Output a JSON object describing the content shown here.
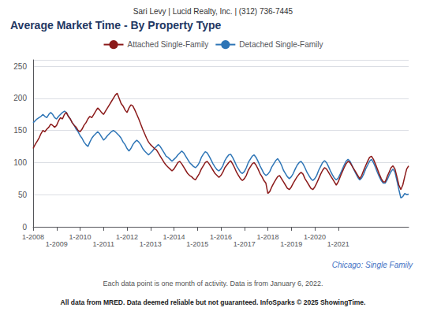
{
  "chart_data": {
    "type": "line",
    "title": "Average Market Time - By Property Type",
    "annotations": [
      "Sari Levy | Lucid Realty, Inc. | (312) 736-7445",
      "Chicago: Single Family",
      "Each data point is one month of activity. Data is from January 6, 2022.",
      "All data from MRED. Data deemed reliable but not guaranteed. InfoSparks © 2025 ShowingTime."
    ],
    "categories": [
      "1-2008",
      null,
      null,
      null,
      null,
      null,
      null,
      null,
      null,
      null,
      null,
      null,
      "1-2009",
      null,
      null,
      null,
      null,
      null,
      null,
      null,
      null,
      null,
      null,
      null,
      "1-2010",
      null,
      null,
      null,
      null,
      null,
      null,
      null,
      null,
      null,
      null,
      null,
      "1-2011",
      null,
      null,
      null,
      null,
      null,
      null,
      null,
      null,
      null,
      null,
      null,
      "1-2012",
      null,
      null,
      null,
      null,
      null,
      null,
      null,
      null,
      null,
      null,
      null,
      "1-2013",
      null,
      null,
      null,
      null,
      null,
      null,
      null,
      null,
      null,
      null,
      null,
      "1-2014",
      null,
      null,
      null,
      null,
      null,
      null,
      null,
      null,
      null,
      null,
      null,
      "1-2015",
      null,
      null,
      null,
      null,
      null,
      null,
      null,
      null,
      null,
      null,
      null,
      "1-2016",
      null,
      null,
      null,
      null,
      null,
      null,
      null,
      null,
      null,
      null,
      null,
      "1-2017",
      null,
      null,
      null,
      null,
      null,
      null,
      null,
      null,
      null,
      null,
      null,
      "1-2018",
      null,
      null,
      null,
      null,
      null,
      null,
      null,
      null,
      null,
      null,
      null,
      "1-2019",
      null,
      null,
      null,
      null,
      null,
      null,
      null,
      null,
      null,
      null,
      null,
      "1-2020",
      null,
      null,
      null,
      null,
      null,
      null,
      null,
      null,
      null,
      null,
      null,
      "1-2021",
      null,
      null,
      null,
      null,
      null,
      null,
      null,
      null,
      null,
      null,
      null,
      null,
      null,
      null,
      null,
      null,
      null,
      null,
      null,
      null,
      null,
      null,
      null,
      null,
      null,
      null,
      null,
      null,
      null,
      null,
      null,
      null,
      null,
      null,
      null,
      null
    ],
    "series": [
      {
        "name": "Attached Single-Family",
        "color": "#8B1A1A",
        "values": [
          122,
          128,
          133,
          138,
          145,
          150,
          148,
          152,
          155,
          160,
          158,
          155,
          158,
          165,
          170,
          168,
          175,
          178,
          172,
          168,
          162,
          158,
          155,
          150,
          148,
          152,
          158,
          162,
          168,
          172,
          170,
          175,
          180,
          185,
          182,
          178,
          175,
          180,
          185,
          190,
          195,
          200,
          205,
          208,
          200,
          192,
          188,
          182,
          178,
          185,
          190,
          188,
          182,
          175,
          168,
          160,
          152,
          145,
          138,
          132,
          128,
          125,
          122,
          120,
          115,
          110,
          105,
          100,
          96,
          93,
          90,
          87,
          90,
          95,
          100,
          102,
          98,
          93,
          88,
          83,
          80,
          78,
          75,
          73,
          78,
          83,
          90,
          95,
          100,
          102,
          98,
          93,
          88,
          83,
          80,
          77,
          80,
          85,
          92,
          96,
          100,
          103,
          98,
          92,
          85,
          80,
          75,
          72,
          75,
          80,
          88,
          93,
          98,
          100,
          96,
          90,
          83,
          78,
          72,
          68,
          52,
          55,
          62,
          68,
          73,
          78,
          80,
          75,
          70,
          65,
          60,
          58,
          62,
          68,
          73,
          78,
          82,
          85,
          82,
          75,
          70,
          65,
          60,
          58,
          62,
          68,
          75,
          82,
          88,
          92,
          90,
          85,
          80,
          75,
          70,
          65,
          70,
          78,
          85,
          92,
          98,
          102,
          100,
          95,
          90,
          85,
          80,
          75,
          80,
          88,
          95,
          102,
          108,
          110,
          105,
          98,
          90,
          82,
          75,
          70,
          70,
          78,
          85,
          92,
          95,
          90,
          78,
          65,
          58,
          65,
          78,
          90,
          95
        ]
      },
      {
        "name": "Detached Single-Family",
        "color": "#2E75B6",
        "values": [
          162,
          165,
          168,
          170,
          172,
          175,
          172,
          170,
          175,
          178,
          175,
          170,
          168,
          172,
          175,
          178,
          180,
          178,
          172,
          168,
          162,
          158,
          152,
          148,
          142,
          138,
          132,
          128,
          125,
          132,
          138,
          142,
          145,
          148,
          145,
          140,
          135,
          138,
          142,
          145,
          148,
          150,
          148,
          145,
          142,
          138,
          132,
          128,
          122,
          118,
          122,
          128,
          132,
          135,
          132,
          128,
          122,
          118,
          115,
          112,
          115,
          118,
          122,
          125,
          128,
          125,
          120,
          115,
          110,
          108,
          105,
          102,
          105,
          108,
          112,
          115,
          118,
          115,
          110,
          105,
          100,
          97,
          94,
          92,
          95,
          100,
          108,
          113,
          117,
          115,
          110,
          104,
          98,
          93,
          89,
          87,
          90,
          95,
          103,
          108,
          112,
          113,
          108,
          102,
          95,
          90,
          85,
          83,
          86,
          92,
          100,
          105,
          110,
          112,
          108,
          102,
          95,
          89,
          83,
          80,
          82,
          86,
          93,
          98,
          103,
          106,
          102,
          96,
          88,
          83,
          78,
          75,
          78,
          83,
          90,
          96,
          100,
          102,
          98,
          92,
          85,
          80,
          75,
          72,
          75,
          80,
          88,
          94,
          100,
          103,
          100,
          94,
          87,
          81,
          76,
          73,
          76,
          82,
          89,
          96,
          102,
          105,
          102,
          96,
          89,
          83,
          77,
          73,
          76,
          82,
          90,
          96,
          102,
          105,
          100,
          93,
          85,
          78,
          72,
          68,
          68,
          73,
          80,
          86,
          90,
          85,
          72,
          58,
          45,
          47,
          52,
          50,
          51
        ]
      }
    ],
    "ylim": [
      0,
      260
    ],
    "yticks": [
      0,
      50,
      100,
      150,
      200,
      250
    ],
    "grid": true,
    "legend": "top"
  }
}
